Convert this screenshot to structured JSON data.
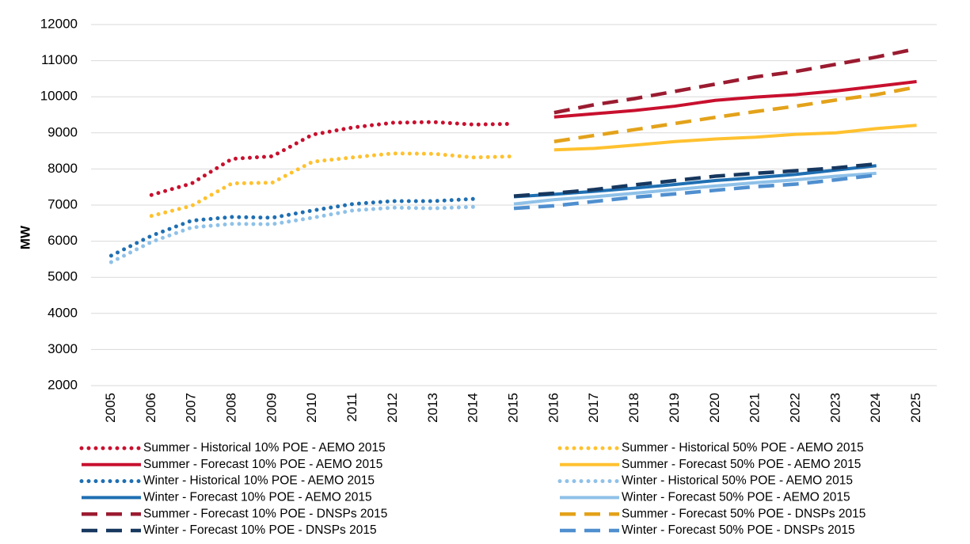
{
  "chart_data": {
    "type": "line",
    "y_label": "MW",
    "categories": [
      "2005",
      "2006",
      "2007",
      "2008",
      "2009",
      "2010",
      "2011",
      "2012",
      "2013",
      "2014",
      "2015",
      "2016",
      "2017",
      "2018",
      "2019",
      "2020",
      "2021",
      "2022",
      "2023",
      "2024",
      "2025"
    ],
    "ylim": [
      2000,
      12000
    ],
    "yticks": [
      2000,
      3000,
      4000,
      5000,
      6000,
      7000,
      8000,
      9000,
      10000,
      11000,
      12000
    ],
    "grid": true,
    "series": [
      {
        "name": "Summer - Historical 10% POE - AEMO 2015",
        "color": "#c8102e",
        "style": "dotted",
        "values": [
          null,
          7280,
          7600,
          8280,
          8350,
          8950,
          9150,
          9280,
          9300,
          9230,
          9250,
          null,
          null,
          null,
          null,
          null,
          null,
          null,
          null,
          null,
          null
        ]
      },
      {
        "name": "Summer - Historical 50% POE - AEMO 2015",
        "color": "#ffc12f",
        "style": "dotted",
        "values": [
          null,
          6700,
          6980,
          7600,
          7620,
          8200,
          8320,
          8430,
          8420,
          8320,
          8350,
          null,
          null,
          null,
          null,
          null,
          null,
          null,
          null,
          null,
          null
        ]
      },
      {
        "name": "Summer - Forecast 10% POE - AEMO 2015",
        "color": "#c8102e",
        "style": "solid",
        "values": [
          null,
          null,
          null,
          null,
          null,
          null,
          null,
          null,
          null,
          null,
          null,
          9440,
          9530,
          9620,
          9740,
          9900,
          9990,
          10060,
          10160,
          10290,
          10420
        ]
      },
      {
        "name": "Summer - Forecast 50% POE - AEMO 2015",
        "color": "#ffc12f",
        "style": "solid",
        "values": [
          null,
          null,
          null,
          null,
          null,
          null,
          null,
          null,
          null,
          null,
          null,
          8530,
          8570,
          8660,
          8760,
          8830,
          8880,
          8960,
          9000,
          9120,
          9210
        ]
      },
      {
        "name": "Winter - Historical 10% POE - AEMO 2015",
        "color": "#1f6fb2",
        "style": "dotted",
        "values": [
          5600,
          6150,
          6570,
          6670,
          6650,
          6850,
          7030,
          7110,
          7110,
          7170,
          null,
          null,
          null,
          null,
          null,
          null,
          null,
          null,
          null,
          null,
          null
        ]
      },
      {
        "name": "Winter - Historical 50% POE - AEMO 2015",
        "color": "#8fc1e8",
        "style": "dotted",
        "values": [
          5420,
          5980,
          6380,
          6480,
          6470,
          6650,
          6850,
          6930,
          6910,
          6950,
          null,
          null,
          null,
          null,
          null,
          null,
          null,
          null,
          null,
          null,
          null
        ]
      },
      {
        "name": "Winter - Forecast 10% POE - AEMO 2015",
        "color": "#1f6fb2",
        "style": "solid",
        "values": [
          null,
          null,
          null,
          null,
          null,
          null,
          null,
          null,
          null,
          null,
          7230,
          7300,
          7380,
          7470,
          7570,
          7680,
          7760,
          7850,
          7970,
          8090,
          null
        ]
      },
      {
        "name": "Winter - Forecast 50% POE - AEMO 2015",
        "color": "#8fc1e8",
        "style": "solid",
        "values": [
          null,
          null,
          null,
          null,
          null,
          null,
          null,
          null,
          null,
          null,
          7030,
          7150,
          7230,
          7330,
          7430,
          7530,
          7620,
          7700,
          7800,
          7880,
          null
        ]
      },
      {
        "name": "Summer - Forecast 10% POE - DNSPs 2015",
        "color": "#9b1b30",
        "style": "dashed",
        "values": [
          null,
          null,
          null,
          null,
          null,
          null,
          null,
          null,
          null,
          null,
          null,
          9560,
          9780,
          9950,
          10150,
          10350,
          10550,
          10700,
          10900,
          11100,
          11330
        ]
      },
      {
        "name": "Summer - Forecast 50% POE - DNSPs 2015",
        "color": "#e3a21a",
        "style": "dashed",
        "values": [
          null,
          null,
          null,
          null,
          null,
          null,
          null,
          null,
          null,
          null,
          null,
          8760,
          8930,
          9090,
          9260,
          9430,
          9590,
          9740,
          9910,
          10060,
          10270
        ]
      },
      {
        "name": "Winter - Forecast 10% POE - DNSPs 2015",
        "color": "#17375e",
        "style": "dashed",
        "values": [
          null,
          null,
          null,
          null,
          null,
          null,
          null,
          null,
          null,
          null,
          7250,
          7330,
          7430,
          7560,
          7680,
          7800,
          7880,
          7950,
          8030,
          8140,
          null
        ]
      },
      {
        "name": "Winter - Forecast 50% POE - DNSPs 2015",
        "color": "#4f8fcf",
        "style": "dashed",
        "values": [
          null,
          null,
          null,
          null,
          null,
          null,
          null,
          null,
          null,
          null,
          6910,
          6980,
          7100,
          7220,
          7310,
          7410,
          7510,
          7580,
          7700,
          7830,
          null
        ]
      }
    ]
  }
}
